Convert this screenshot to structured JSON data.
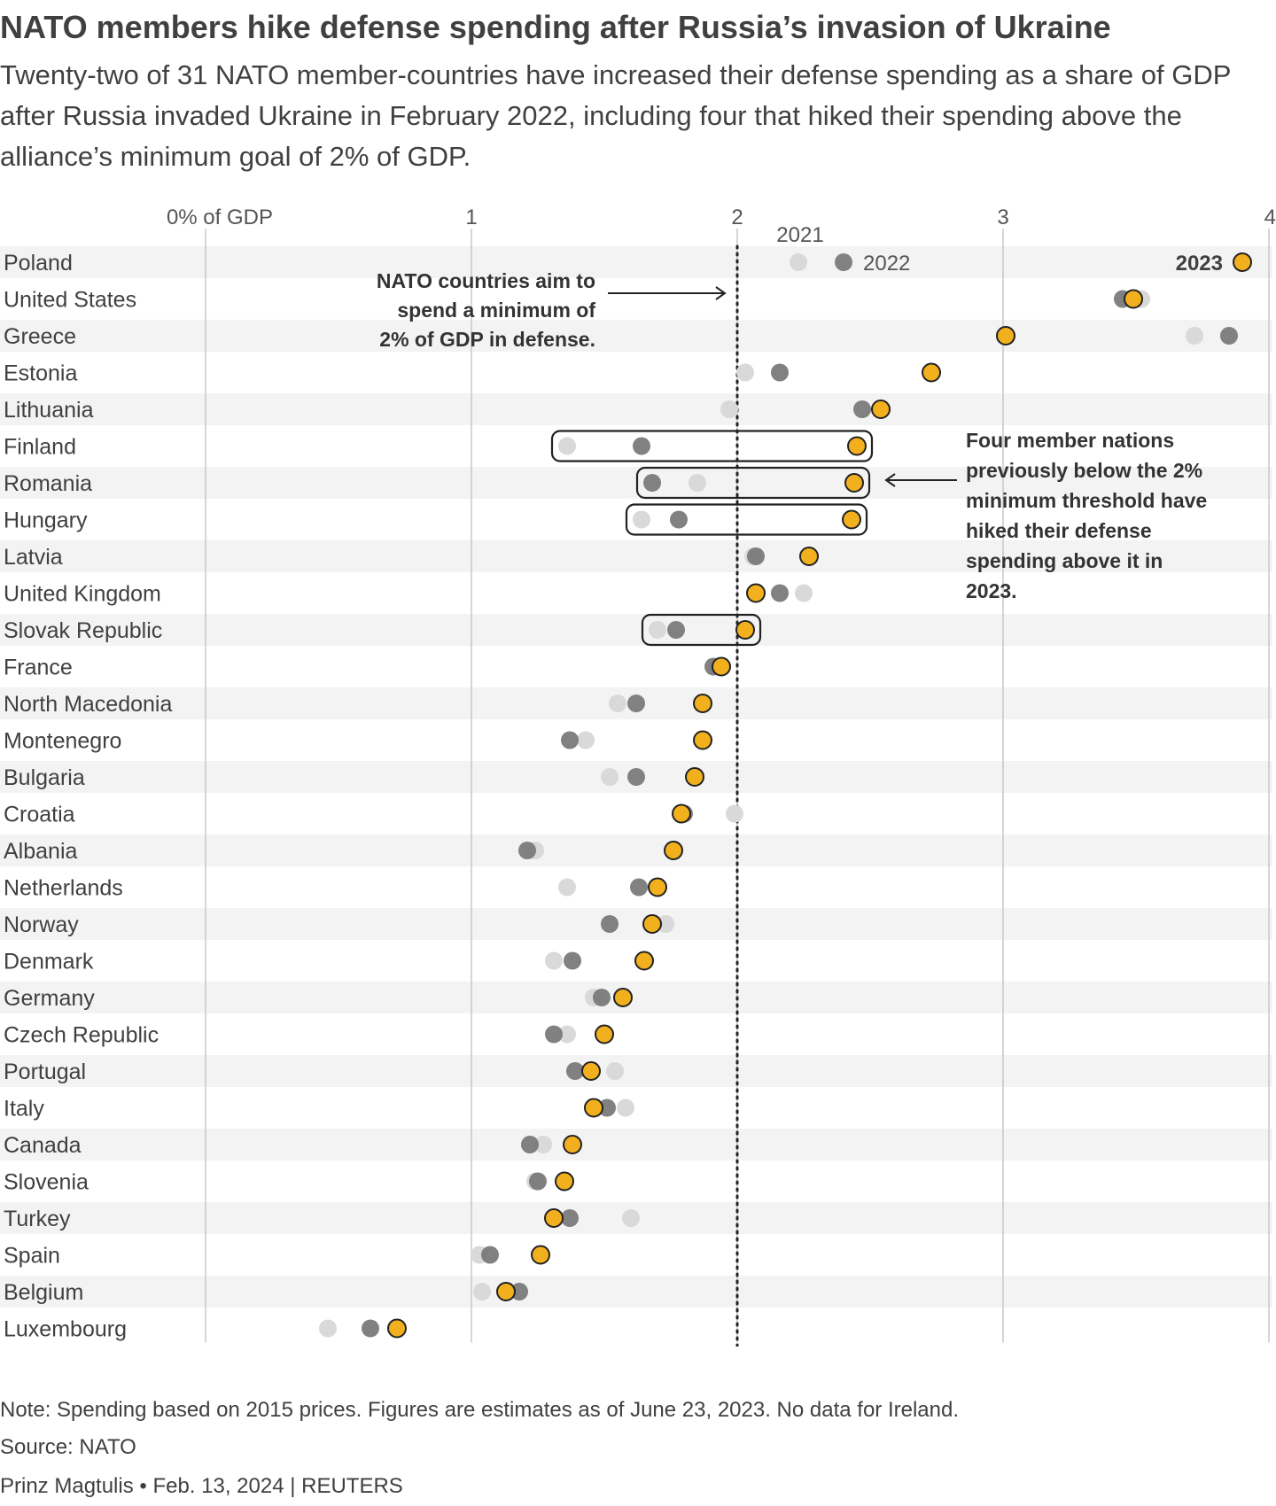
{
  "title": "NATO members hike defense spending after Russia’s invasion of Ukraine",
  "subtitle": "Twenty-two of 31 NATO member-countries have increased their defense spending as a share of GDP after Russia invaded Ukraine in February 2022, including four that hiked their spending above the alliance’s minimum goal of 2% of GDP.",
  "colors": {
    "y2021": "#d9d9d9",
    "y2022": "#7a7a7a",
    "y2023": "#f2b01e",
    "band": "#f3f3f3",
    "text": "#404040"
  },
  "chart_data": {
    "type": "scatter",
    "xlabel": "% of GDP",
    "xlim": [
      0,
      4
    ],
    "ticks": [
      {
        "value": 0,
        "label": "0% of GDP"
      },
      {
        "value": 1,
        "label": "1"
      },
      {
        "value": 2,
        "label": "2"
      },
      {
        "value": 3,
        "label": "3"
      },
      {
        "value": 4,
        "label": "4"
      }
    ],
    "threshold": 2,
    "legend": {
      "y2021": "2021",
      "y2022": "2022",
      "y2023": "2023"
    },
    "annotations": {
      "threshold_note": [
        "NATO countries aim to",
        "spend a minimum of",
        "2% of GDP in defense."
      ],
      "four_nations_note": [
        "Four member nations",
        "previously below the 2%",
        "minimum threshold have",
        "hiked their defense",
        "spending above it in",
        "2023."
      ]
    },
    "highlighted": [
      "Finland",
      "Romania",
      "Hungary",
      "Slovak Republic"
    ],
    "countries": [
      {
        "name": "Poland",
        "y2021": 2.23,
        "y2022": 2.4,
        "y2023": 3.9
      },
      {
        "name": "United States",
        "y2021": 3.52,
        "y2022": 3.45,
        "y2023": 3.49
      },
      {
        "name": "Greece",
        "y2021": 3.72,
        "y2022": 3.85,
        "y2023": 3.01
      },
      {
        "name": "Estonia",
        "y2021": 2.03,
        "y2022": 2.16,
        "y2023": 2.73
      },
      {
        "name": "Lithuania",
        "y2021": 1.97,
        "y2022": 2.47,
        "y2023": 2.54
      },
      {
        "name": "Finland",
        "y2021": 1.36,
        "y2022": 1.64,
        "y2023": 2.45
      },
      {
        "name": "Romania",
        "y2021": 1.85,
        "y2022": 1.68,
        "y2023": 2.44
      },
      {
        "name": "Hungary",
        "y2021": 1.64,
        "y2022": 1.78,
        "y2023": 2.43
      },
      {
        "name": "Latvia",
        "y2021": 2.06,
        "y2022": 2.07,
        "y2023": 2.27
      },
      {
        "name": "United Kingdom",
        "y2021": 2.25,
        "y2022": 2.16,
        "y2023": 2.07
      },
      {
        "name": "Slovak Republic",
        "y2021": 1.7,
        "y2022": 1.77,
        "y2023": 2.03
      },
      {
        "name": "France",
        "y2021": 1.93,
        "y2022": 1.91,
        "y2023": 1.94
      },
      {
        "name": "North Macedonia",
        "y2021": 1.55,
        "y2022": 1.62,
        "y2023": 1.87
      },
      {
        "name": "Montenegro",
        "y2021": 1.43,
        "y2022": 1.37,
        "y2023": 1.87
      },
      {
        "name": "Bulgaria",
        "y2021": 1.52,
        "y2022": 1.62,
        "y2023": 1.84
      },
      {
        "name": "Croatia",
        "y2021": 1.99,
        "y2022": 1.8,
        "y2023": 1.79
      },
      {
        "name": "Albania",
        "y2021": 1.24,
        "y2022": 1.21,
        "y2023": 1.76
      },
      {
        "name": "Netherlands",
        "y2021": 1.36,
        "y2022": 1.63,
        "y2023": 1.7
      },
      {
        "name": "Norway",
        "y2021": 1.73,
        "y2022": 1.52,
        "y2023": 1.68
      },
      {
        "name": "Denmark",
        "y2021": 1.31,
        "y2022": 1.38,
        "y2023": 1.65
      },
      {
        "name": "Germany",
        "y2021": 1.46,
        "y2022": 1.49,
        "y2023": 1.57
      },
      {
        "name": "Czech Republic",
        "y2021": 1.36,
        "y2022": 1.31,
        "y2023": 1.5
      },
      {
        "name": "Portugal",
        "y2021": 1.54,
        "y2022": 1.39,
        "y2023": 1.45
      },
      {
        "name": "Italy",
        "y2021": 1.58,
        "y2022": 1.51,
        "y2023": 1.46
      },
      {
        "name": "Canada",
        "y2021": 1.27,
        "y2022": 1.22,
        "y2023": 1.38
      },
      {
        "name": "Slovenia",
        "y2021": 1.24,
        "y2022": 1.25,
        "y2023": 1.35
      },
      {
        "name": "Turkey",
        "y2021": 1.6,
        "y2022": 1.37,
        "y2023": 1.31
      },
      {
        "name": "Spain",
        "y2021": 1.03,
        "y2022": 1.07,
        "y2023": 1.26
      },
      {
        "name": "Belgium",
        "y2021": 1.04,
        "y2022": 1.18,
        "y2023": 1.13
      },
      {
        "name": "Luxembourg",
        "y2021": 0.46,
        "y2022": 0.62,
        "y2023": 0.72
      }
    ]
  },
  "footer": {
    "note": "Note: Spending based on 2015 prices. Figures are estimates as of June 23, 2023. No data for Ireland.",
    "source": "Source: NATO",
    "credit": "Prinz Magtulis • Feb. 13, 2024 | REUTERS"
  }
}
